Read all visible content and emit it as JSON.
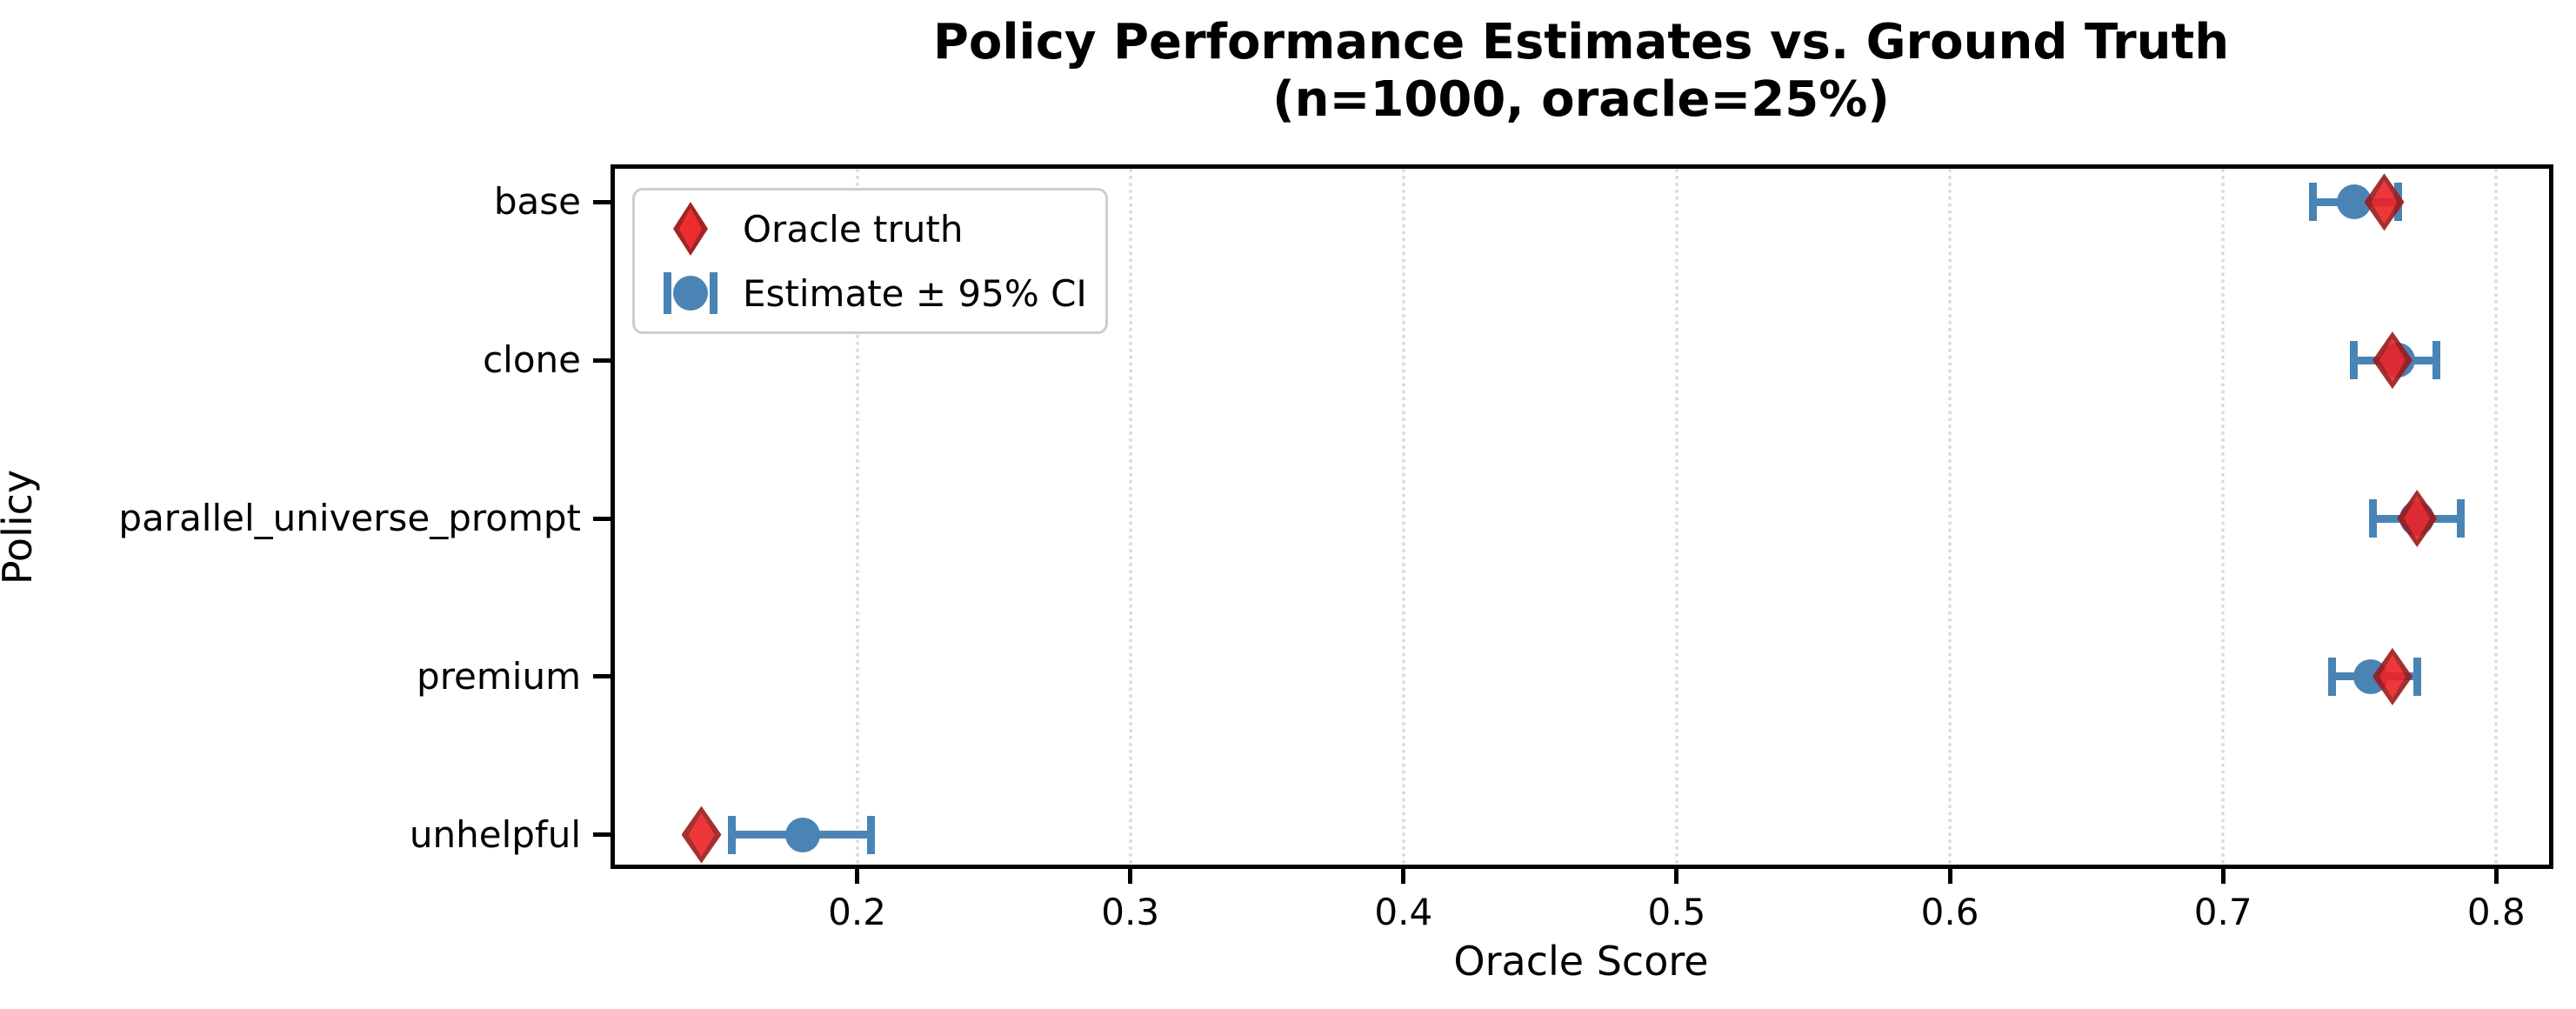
{
  "title": {
    "line1": "Policy Performance Estimates vs. Ground Truth",
    "line2": "(n=1000, oracle=25%)"
  },
  "axes": {
    "xlabel": "Oracle Score",
    "ylabel": "Policy"
  },
  "legend": {
    "items": [
      {
        "label": "Oracle truth",
        "marker": "red-diamond"
      },
      {
        "label": "Estimate ± 95% CI",
        "marker": "blue-circle-with-error-caps"
      }
    ],
    "position": "upper left"
  },
  "colors": {
    "estimate_blue": "#4a84b4",
    "oracle_fill": "#ee2226",
    "oracle_edge": "#9c1a1a",
    "grid": "#dcdcdc",
    "spine": "#000000",
    "legend_border": "#cdcdcd",
    "background": "#ffffff"
  },
  "chart_data": {
    "type": "scatter",
    "orientation": "horizontal",
    "title": "Policy Performance Estimates vs. Ground Truth (n=1000, oracle=25%)",
    "xlabel": "Oracle Score",
    "ylabel": "Policy",
    "categories": [
      "base",
      "clone",
      "parallel_universe_prompt",
      "premium",
      "unhelpful"
    ],
    "series": [
      {
        "name": "Oracle truth",
        "marker": "diamond",
        "values": [
          0.759,
          0.762,
          0.771,
          0.762,
          0.143
        ]
      },
      {
        "name": "Estimate ± 95% CI",
        "marker": "circle",
        "values": [
          0.748,
          0.764,
          0.771,
          0.754,
          0.18
        ],
        "ci_low": [
          0.733,
          0.748,
          0.755,
          0.74,
          0.154
        ],
        "ci_high": [
          0.764,
          0.778,
          0.787,
          0.771,
          0.205
        ]
      }
    ],
    "x_tick_labels": [
      "0.2",
      "0.3",
      "0.4",
      "0.5",
      "0.6",
      "0.7",
      "0.8"
    ],
    "xlim": [
      0.111,
      0.819
    ],
    "grid": "vertical-dotted",
    "legend_position": "upper left"
  }
}
